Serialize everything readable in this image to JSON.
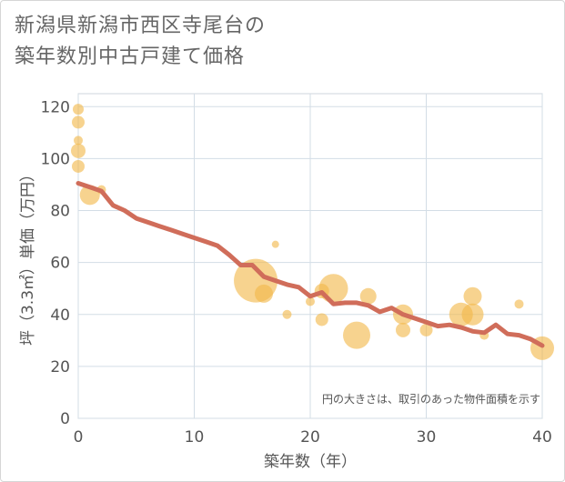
{
  "title_lines": [
    "新潟県新潟市西区寺尾台の",
    "築年数別中古戸建て価格"
  ],
  "colors": {
    "bubble": "#f2b84b",
    "line": "#d06d5a",
    "grid": "#d3dde6",
    "plot_border": "#cfd6dc"
  },
  "chart_data": {
    "type": "scatter",
    "title": "新潟県新潟市西区寺尾台の築年数別中古戸建て価格",
    "xlabel": "築年数（年）",
    "ylabel": "坪（3.3㎡）単価（万円）",
    "xlim": [
      0,
      40
    ],
    "ylim": [
      0,
      125
    ],
    "xticks": [
      0,
      10,
      20,
      30,
      40
    ],
    "yticks": [
      0,
      20,
      40,
      60,
      80,
      100,
      120
    ],
    "grid": true,
    "note": "円の大きさは、取引のあった物件面積を示す",
    "bubbles": [
      {
        "x": 0,
        "y": 119,
        "size": 6
      },
      {
        "x": 0,
        "y": 114,
        "size": 7
      },
      {
        "x": 0,
        "y": 107,
        "size": 5
      },
      {
        "x": 0,
        "y": 103,
        "size": 8
      },
      {
        "x": 0,
        "y": 97,
        "size": 7
      },
      {
        "x": 1,
        "y": 86,
        "size": 11
      },
      {
        "x": 2,
        "y": 88,
        "size": 5
      },
      {
        "x": 15.3,
        "y": 53,
        "size": 24
      },
      {
        "x": 16,
        "y": 48,
        "size": 10
      },
      {
        "x": 17,
        "y": 67,
        "size": 4
      },
      {
        "x": 18,
        "y": 40,
        "size": 5
      },
      {
        "x": 20,
        "y": 45,
        "size": 5
      },
      {
        "x": 21,
        "y": 49,
        "size": 8
      },
      {
        "x": 21,
        "y": 38,
        "size": 7
      },
      {
        "x": 22,
        "y": 50,
        "size": 16
      },
      {
        "x": 24,
        "y": 32,
        "size": 15
      },
      {
        "x": 25,
        "y": 47,
        "size": 9
      },
      {
        "x": 28,
        "y": 40,
        "size": 11
      },
      {
        "x": 28,
        "y": 34,
        "size": 8
      },
      {
        "x": 30,
        "y": 34,
        "size": 7
      },
      {
        "x": 33,
        "y": 40,
        "size": 13
      },
      {
        "x": 34,
        "y": 47,
        "size": 10
      },
      {
        "x": 34,
        "y": 40,
        "size": 12
      },
      {
        "x": 35,
        "y": 32,
        "size": 5
      },
      {
        "x": 38,
        "y": 44,
        "size": 5
      },
      {
        "x": 40,
        "y": 27,
        "size": 13
      }
    ],
    "trend": {
      "x": [
        0,
        1,
        2,
        3,
        4,
        5,
        6,
        7,
        8,
        9,
        10,
        11,
        12,
        13,
        14,
        15,
        16,
        17,
        18,
        19,
        20,
        21,
        22,
        23,
        24,
        25,
        26,
        27,
        28,
        29,
        30,
        31,
        32,
        33,
        34,
        35,
        36,
        37,
        38,
        39,
        40
      ],
      "y": [
        90.5,
        89,
        87.5,
        82,
        80,
        77,
        75.5,
        74,
        72.5,
        71,
        69.5,
        68,
        66.5,
        63,
        59,
        59,
        54.5,
        53,
        51.5,
        50.5,
        47,
        48.5,
        44,
        44.5,
        44.5,
        43.5,
        41,
        42.5,
        40,
        38.5,
        37,
        35.5,
        36,
        35,
        33.5,
        33,
        36,
        32.5,
        32,
        30.5,
        28
      ]
    }
  }
}
